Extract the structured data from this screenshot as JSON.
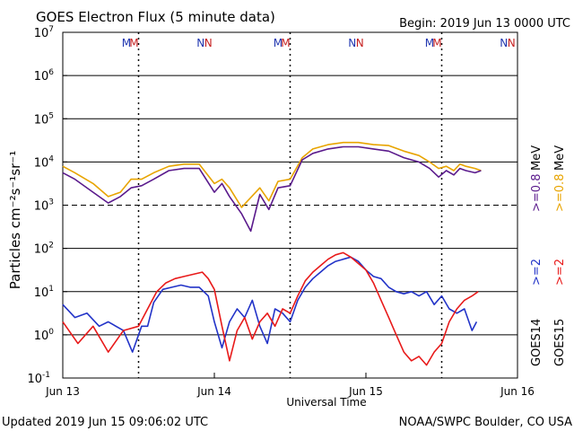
{
  "chart_data": {
    "type": "line",
    "title": "GOES Electron Flux (5 minute data)",
    "begin_label": "Begin: 2019 Jun 13 0000 UTC",
    "updated_label": "Updated 2019 Jun 15 09:06:02 UTC",
    "credit_label": "NOAA/SWPC Boulder, CO USA",
    "xlabel": "Universal Time",
    "ylabel": "Particles cm⁻²s⁻¹sr⁻¹",
    "x_range_days": [
      0,
      3
    ],
    "x_ticks": [
      {
        "day": 0,
        "label": "Jun 13"
      },
      {
        "day": 1,
        "label": "Jun 14"
      },
      {
        "day": 2,
        "label": "Jun 15"
      },
      {
        "day": 3,
        "label": "Jun 16"
      }
    ],
    "y_log_range": [
      -1,
      7
    ],
    "y_ticks": [
      {
        "exp": 7,
        "label": "10",
        "sup": "7"
      },
      {
        "exp": 6,
        "label": "10",
        "sup": "6"
      },
      {
        "exp": 5,
        "label": "10",
        "sup": "5"
      },
      {
        "exp": 4,
        "label": "10",
        "sup": "4"
      },
      {
        "exp": 3,
        "label": "10",
        "sup": "3"
      },
      {
        "exp": 2,
        "label": "10",
        "sup": "2"
      },
      {
        "exp": 1,
        "label": "10",
        "sup": "1"
      },
      {
        "exp": 0,
        "label": "10",
        "sup": "0"
      },
      {
        "exp": -1,
        "label": "10",
        "sup": "-1"
      }
    ],
    "threshold_log": 3,
    "midnight_marks_days": [
      0.5,
      1.5,
      2.5
    ],
    "markers": [
      {
        "label": "M",
        "day": 0.42,
        "color": "#2036b0"
      },
      {
        "label": "M",
        "day": 0.47,
        "color": "#c62020"
      },
      {
        "label": "N",
        "day": 0.91,
        "color": "#2036b0"
      },
      {
        "label": "N",
        "day": 0.96,
        "color": "#c62020"
      },
      {
        "label": "M",
        "day": 1.42,
        "color": "#2036b0"
      },
      {
        "label": "M",
        "day": 1.47,
        "color": "#c62020"
      },
      {
        "label": "N",
        "day": 1.91,
        "color": "#2036b0"
      },
      {
        "label": "N",
        "day": 1.96,
        "color": "#c62020"
      },
      {
        "label": "M",
        "day": 2.42,
        "color": "#2036b0"
      },
      {
        "label": "M",
        "day": 2.47,
        "color": "#c62020"
      },
      {
        "label": "N",
        "day": 2.91,
        "color": "#2036b0"
      },
      {
        "label": "N",
        "day": 2.96,
        "color": "#c62020"
      }
    ],
    "right_legend": {
      "goes14": "GOES14",
      "goes15": "GOES15",
      "e2_14": ">=2",
      "e2_15": ">=2",
      "e08_14": ">=0.8",
      "e08_15": ">=0.8",
      "mev_1": "MeV",
      "mev_2": "MeV"
    },
    "series": [
      {
        "name": "GOES15 >=0.8 MeV",
        "color": "#e8a400",
        "x": [
          0.0,
          0.08,
          0.2,
          0.3,
          0.38,
          0.45,
          0.52,
          0.6,
          0.7,
          0.8,
          0.9,
          1.0,
          1.05,
          1.1,
          1.18,
          1.3,
          1.36,
          1.42,
          1.5,
          1.58,
          1.65,
          1.75,
          1.85,
          1.95,
          2.05,
          2.15,
          2.25,
          2.35,
          2.42,
          2.48,
          2.53,
          2.58,
          2.62,
          2.66,
          2.72,
          2.76
        ],
        "log_values": [
          3.9,
          3.75,
          3.5,
          3.2,
          3.3,
          3.6,
          3.6,
          3.75,
          3.9,
          3.95,
          3.95,
          3.5,
          3.6,
          3.4,
          2.95,
          3.4,
          3.1,
          3.55,
          3.6,
          4.1,
          4.3,
          4.4,
          4.45,
          4.45,
          4.4,
          4.38,
          4.25,
          4.15,
          4.0,
          3.85,
          3.9,
          3.8,
          3.95,
          3.9,
          3.85,
          3.8
        ]
      },
      {
        "name": "GOES14 >=0.8 MeV",
        "color": "#5a1a8c",
        "x": [
          0.0,
          0.08,
          0.2,
          0.3,
          0.38,
          0.45,
          0.52,
          0.6,
          0.7,
          0.8,
          0.9,
          1.0,
          1.05,
          1.1,
          1.18,
          1.24,
          1.3,
          1.36,
          1.42,
          1.5,
          1.58,
          1.65,
          1.75,
          1.85,
          1.95,
          2.05,
          2.15,
          2.25,
          2.35,
          2.42,
          2.48,
          2.53,
          2.58,
          2.62,
          2.66,
          2.72,
          2.76
        ],
        "log_values": [
          3.75,
          3.6,
          3.3,
          3.05,
          3.2,
          3.4,
          3.45,
          3.6,
          3.8,
          3.85,
          3.85,
          3.3,
          3.5,
          3.2,
          2.8,
          2.4,
          3.25,
          2.9,
          3.4,
          3.45,
          4.05,
          4.2,
          4.3,
          4.35,
          4.35,
          4.3,
          4.25,
          4.1,
          4.0,
          3.85,
          3.65,
          3.8,
          3.7,
          3.85,
          3.8,
          3.75,
          3.8
        ]
      },
      {
        "name": "GOES14 >=2 MeV",
        "color": "#2233c8",
        "x": [
          0.0,
          0.08,
          0.16,
          0.24,
          0.3,
          0.4,
          0.46,
          0.52,
          0.56,
          0.6,
          0.66,
          0.72,
          0.78,
          0.84,
          0.9,
          0.96,
          1.0,
          1.05,
          1.1,
          1.15,
          1.2,
          1.25,
          1.3,
          1.35,
          1.4,
          1.45,
          1.5,
          1.55,
          1.6,
          1.65,
          1.7,
          1.75,
          1.8,
          1.85,
          1.9,
          1.95,
          2.0,
          2.05,
          2.1,
          2.15,
          2.2,
          2.25,
          2.3,
          2.35,
          2.4,
          2.45,
          2.5,
          2.55,
          2.6,
          2.65,
          2.7,
          2.73
        ],
        "log_values": [
          0.7,
          0.4,
          0.5,
          0.2,
          0.3,
          0.1,
          -0.4,
          0.2,
          0.2,
          0.75,
          1.05,
          1.1,
          1.15,
          1.1,
          1.1,
          0.9,
          0.3,
          -0.3,
          0.3,
          0.6,
          0.4,
          0.8,
          0.2,
          -0.2,
          0.6,
          0.5,
          0.3,
          0.8,
          1.1,
          1.3,
          1.45,
          1.6,
          1.7,
          1.75,
          1.8,
          1.7,
          1.5,
          1.35,
          1.3,
          1.1,
          1.0,
          0.95,
          1.0,
          0.9,
          1.0,
          0.7,
          0.9,
          0.6,
          0.5,
          0.6,
          0.1,
          0.3
        ]
      },
      {
        "name": "GOES15 >=2 MeV",
        "color": "#e81a1a",
        "x": [
          0.0,
          0.1,
          0.2,
          0.3,
          0.4,
          0.5,
          0.56,
          0.62,
          0.68,
          0.74,
          0.8,
          0.86,
          0.92,
          0.96,
          1.0,
          1.05,
          1.1,
          1.15,
          1.2,
          1.25,
          1.3,
          1.35,
          1.4,
          1.45,
          1.5,
          1.55,
          1.6,
          1.65,
          1.7,
          1.75,
          1.8,
          1.85,
          1.9,
          1.95,
          2.0,
          2.05,
          2.1,
          2.15,
          2.2,
          2.25,
          2.3,
          2.35,
          2.4,
          2.45,
          2.5,
          2.55,
          2.6,
          2.65,
          2.7,
          2.74
        ],
        "log_values": [
          0.3,
          -0.2,
          0.2,
          -0.4,
          0.1,
          0.2,
          0.6,
          1.0,
          1.2,
          1.3,
          1.35,
          1.4,
          1.45,
          1.3,
          1.05,
          0.2,
          -0.6,
          0.1,
          0.4,
          -0.1,
          0.3,
          0.5,
          0.2,
          0.6,
          0.5,
          0.9,
          1.25,
          1.45,
          1.6,
          1.75,
          1.85,
          1.9,
          1.8,
          1.65,
          1.5,
          1.2,
          0.8,
          0.4,
          0.0,
          -0.4,
          -0.6,
          -0.5,
          -0.7,
          -0.4,
          -0.2,
          0.3,
          0.6,
          0.8,
          0.9,
          1.0
        ]
      }
    ]
  }
}
